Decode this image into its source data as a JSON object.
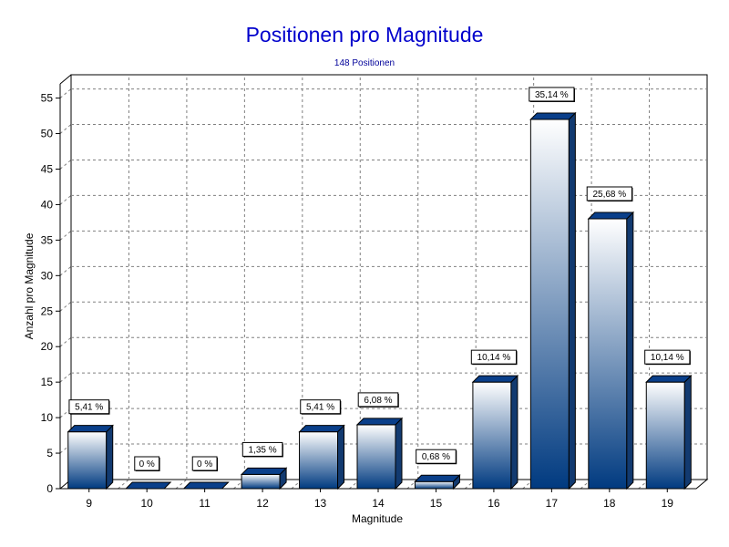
{
  "chart_data": {
    "type": "bar",
    "title": "Positionen pro Magnitude",
    "subtitle": "148 Positionen",
    "xlabel": "Magnitude",
    "ylabel": "Anzahl pro Magnitude",
    "categories": [
      "9",
      "10",
      "11",
      "12",
      "13",
      "14",
      "15",
      "16",
      "17",
      "18",
      "19"
    ],
    "values": [
      8,
      0,
      0,
      2,
      8,
      9,
      1,
      15,
      52,
      38,
      15
    ],
    "data_labels": [
      "5,41 %",
      "0 %",
      "0 %",
      "1,35 %",
      "5,41 %",
      "6,08 %",
      "0,68 %",
      "10,14 %",
      "35,14 %",
      "25,68 %",
      "10,14 %"
    ],
    "ylim": [
      0,
      57
    ],
    "yticks": [
      0,
      5,
      10,
      15,
      20,
      25,
      30,
      35,
      40,
      45,
      50,
      55
    ],
    "grid": true,
    "legend": "none",
    "colors": {
      "title": "#0000cc",
      "subtitle": "#000099",
      "bar_top": "#ffffff",
      "bar_bottom": "#003a80",
      "bar_cap": "#0a3f8a",
      "bar_side": "#123a70",
      "grid": "#808080"
    }
  }
}
